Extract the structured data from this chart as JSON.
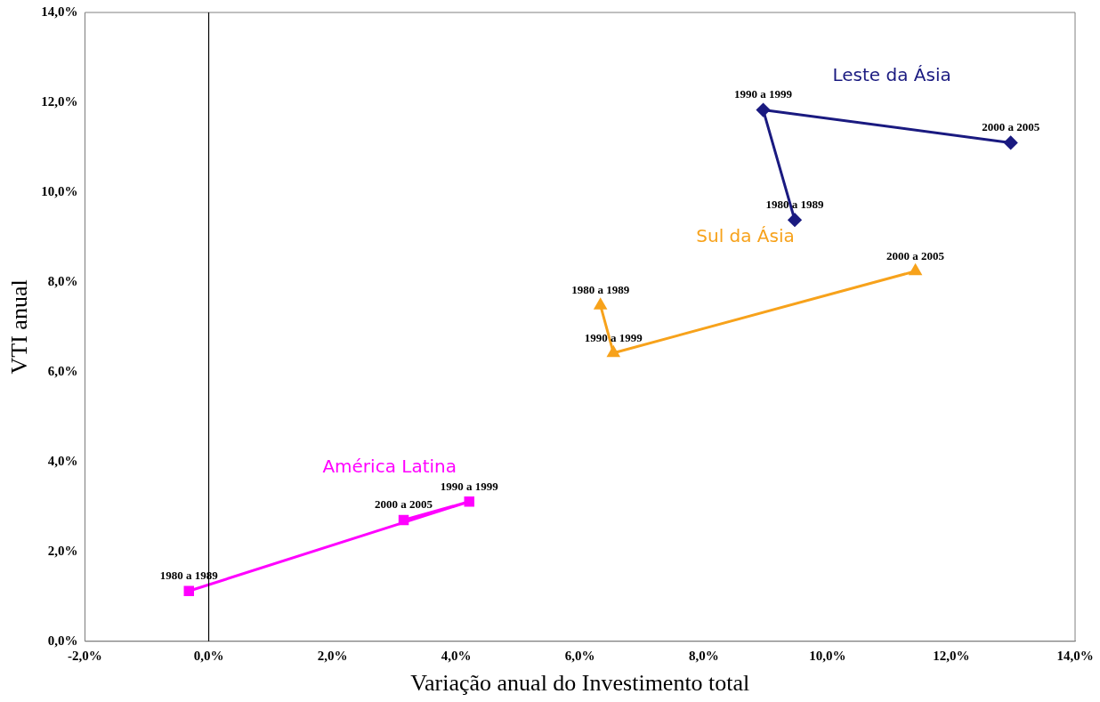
{
  "chart_data": {
    "type": "line",
    "xlabel": "Variação anual do Investimento total",
    "ylabel": "VTI anual",
    "xlim": [
      -2,
      14
    ],
    "ylim": [
      0,
      14
    ],
    "xticks": [
      {
        "value": -2,
        "label": "-2,0%"
      },
      {
        "value": 0,
        "label": "0,0%"
      },
      {
        "value": 2,
        "label": "2,0%"
      },
      {
        "value": 4,
        "label": "4,0%"
      },
      {
        "value": 6,
        "label": "6,0%"
      },
      {
        "value": 8,
        "label": "8,0%"
      },
      {
        "value": 10,
        "label": "10,0%"
      },
      {
        "value": 12,
        "label": "12,0%"
      },
      {
        "value": 14,
        "label": "14,0%"
      }
    ],
    "yticks": [
      {
        "value": 0,
        "label": "0,0%"
      },
      {
        "value": 2,
        "label": "2,0%"
      },
      {
        "value": 4,
        "label": "4,0%"
      },
      {
        "value": 6,
        "label": "6,0%"
      },
      {
        "value": 8,
        "label": "8,0%"
      },
      {
        "value": 10,
        "label": "10,0%"
      },
      {
        "value": 12,
        "label": "12,0%"
      },
      {
        "value": 14,
        "label": "14,0%"
      }
    ],
    "grid": false,
    "legend": false,
    "line_style": "solid",
    "ref_lines": [
      {
        "axis": "x",
        "value": 0,
        "color": "#000000"
      }
    ],
    "series": [
      {
        "name": "Leste da Ásia",
        "color": "#1a1a80",
        "marker": "diamond",
        "x": [
          9.47,
          8.96,
          12.96
        ],
        "values": [
          9.38,
          11.83,
          11.1
        ]
      },
      {
        "name": "Sul da Ásia",
        "color": "#f7a21b",
        "marker": "triangle",
        "x": [
          6.33,
          6.54,
          11.42
        ],
        "values": [
          7.48,
          6.42,
          8.24
        ]
      },
      {
        "name": "América Latina",
        "color": "#ff00ff",
        "marker": "square",
        "x": [
          -0.32,
          4.21,
          3.15
        ],
        "values": [
          1.12,
          3.11,
          2.7
        ]
      }
    ],
    "annotations": [
      {
        "text": "1980 a 1989",
        "x": 9.47,
        "y": 9.38
      },
      {
        "text": "1990 a 1999",
        "x": 8.96,
        "y": 11.83
      },
      {
        "text": "2000 a 2005",
        "x": 12.96,
        "y": 11.1
      },
      {
        "text": "1980 a 1989",
        "x": 6.33,
        "y": 7.48
      },
      {
        "text": "1990 a 1999",
        "x": 6.54,
        "y": 6.42
      },
      {
        "text": "2000 a 2005",
        "x": 11.42,
        "y": 8.24
      },
      {
        "text": "1980 a 1989",
        "x": -0.32,
        "y": 1.12
      },
      {
        "text": "1990 a 1999",
        "x": 4.21,
        "y": 3.11
      },
      {
        "text": "2000 a 2005",
        "x": 3.15,
        "y": 2.7
      }
    ]
  }
}
